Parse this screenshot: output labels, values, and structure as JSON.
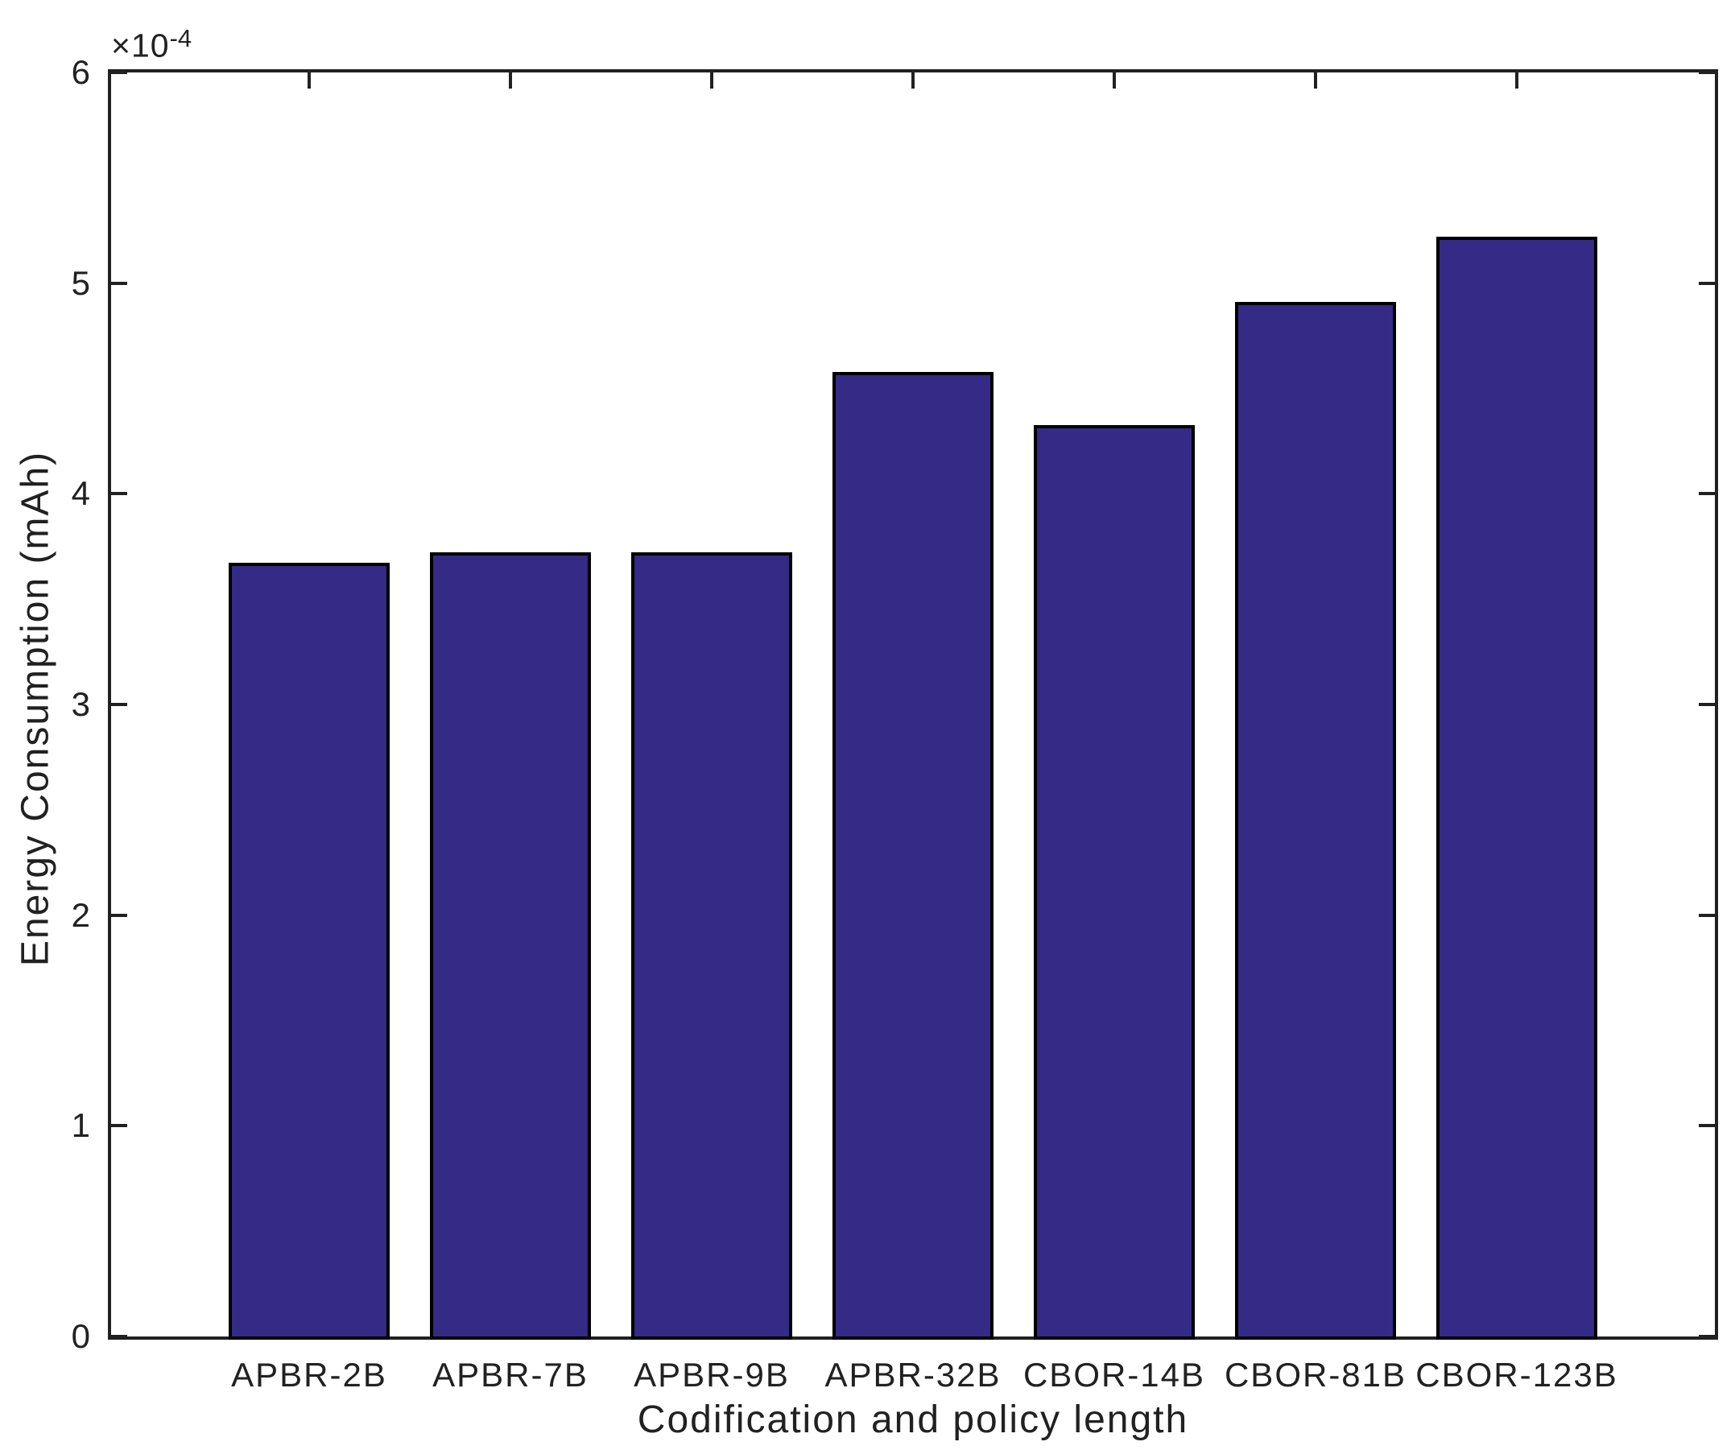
{
  "figure": {
    "background": "#ffffff",
    "axis_color": "#212121",
    "text_color": "#212121"
  },
  "chart_data": {
    "type": "bar",
    "title": "",
    "xlabel": "Codification and policy length",
    "ylabel": "Energy Consumption (mAh)",
    "y_multiplier_base": "×10",
    "y_multiplier_exp": "-4",
    "categories": [
      "APBR-2B",
      "APBR-7B",
      "APBR-9B",
      "APBR-32B",
      "CBOR-14B",
      "CBOR-81B",
      "CBOR-123B"
    ],
    "values_e4": [
      3.67,
      3.72,
      3.72,
      4.57,
      4.32,
      4.9,
      5.21
    ],
    "value_unit": "mAh × 10^-4",
    "yticks": [
      0,
      1,
      2,
      3,
      4,
      5,
      6
    ],
    "ylim_e4": [
      0,
      6
    ],
    "xlim": [
      0,
      8
    ],
    "bar_color": "#352a85",
    "bar_edge_color": "#000000",
    "bar_width_frac": 0.8,
    "grid": false,
    "legend": null,
    "box": true,
    "tick_direction": "in"
  }
}
